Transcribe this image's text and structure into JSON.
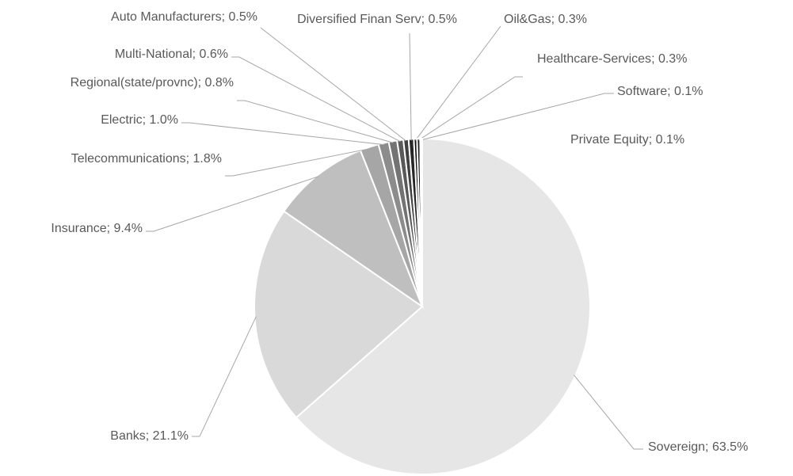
{
  "chart_data": {
    "type": "pie",
    "categories": [
      "Sovereign",
      "Banks",
      "Insurance",
      "Telecommunications",
      "Electric",
      "Regional(state/provnc)",
      "Multi-National",
      "Auto Manufacturers",
      "Diversified Finan Serv",
      "Oil&Gas",
      "Healthcare-Services",
      "Software",
      "Private Equity"
    ],
    "values": [
      63.5,
      21.1,
      9.4,
      1.8,
      1.0,
      0.8,
      0.6,
      0.5,
      0.5,
      0.3,
      0.3,
      0.1,
      0.1
    ],
    "value_labels": [
      "63.5%",
      "21.1%",
      "9.4%",
      "1.8%",
      "1.0%",
      "0.8%",
      "0.6%",
      "0.5%",
      "0.5%",
      "0.3%",
      "0.3%",
      "0.1%",
      "0.1%"
    ],
    "separator": "; ",
    "colors": [
      "#e6e6e6",
      "#d9d9d9",
      "#bfbfbf",
      "#a6a6a6",
      "#8c8c8c",
      "#737373",
      "#595959",
      "#404040",
      "#262626",
      "#0d0d0d",
      "#1a1a1a",
      "#333333",
      "#000000"
    ]
  }
}
